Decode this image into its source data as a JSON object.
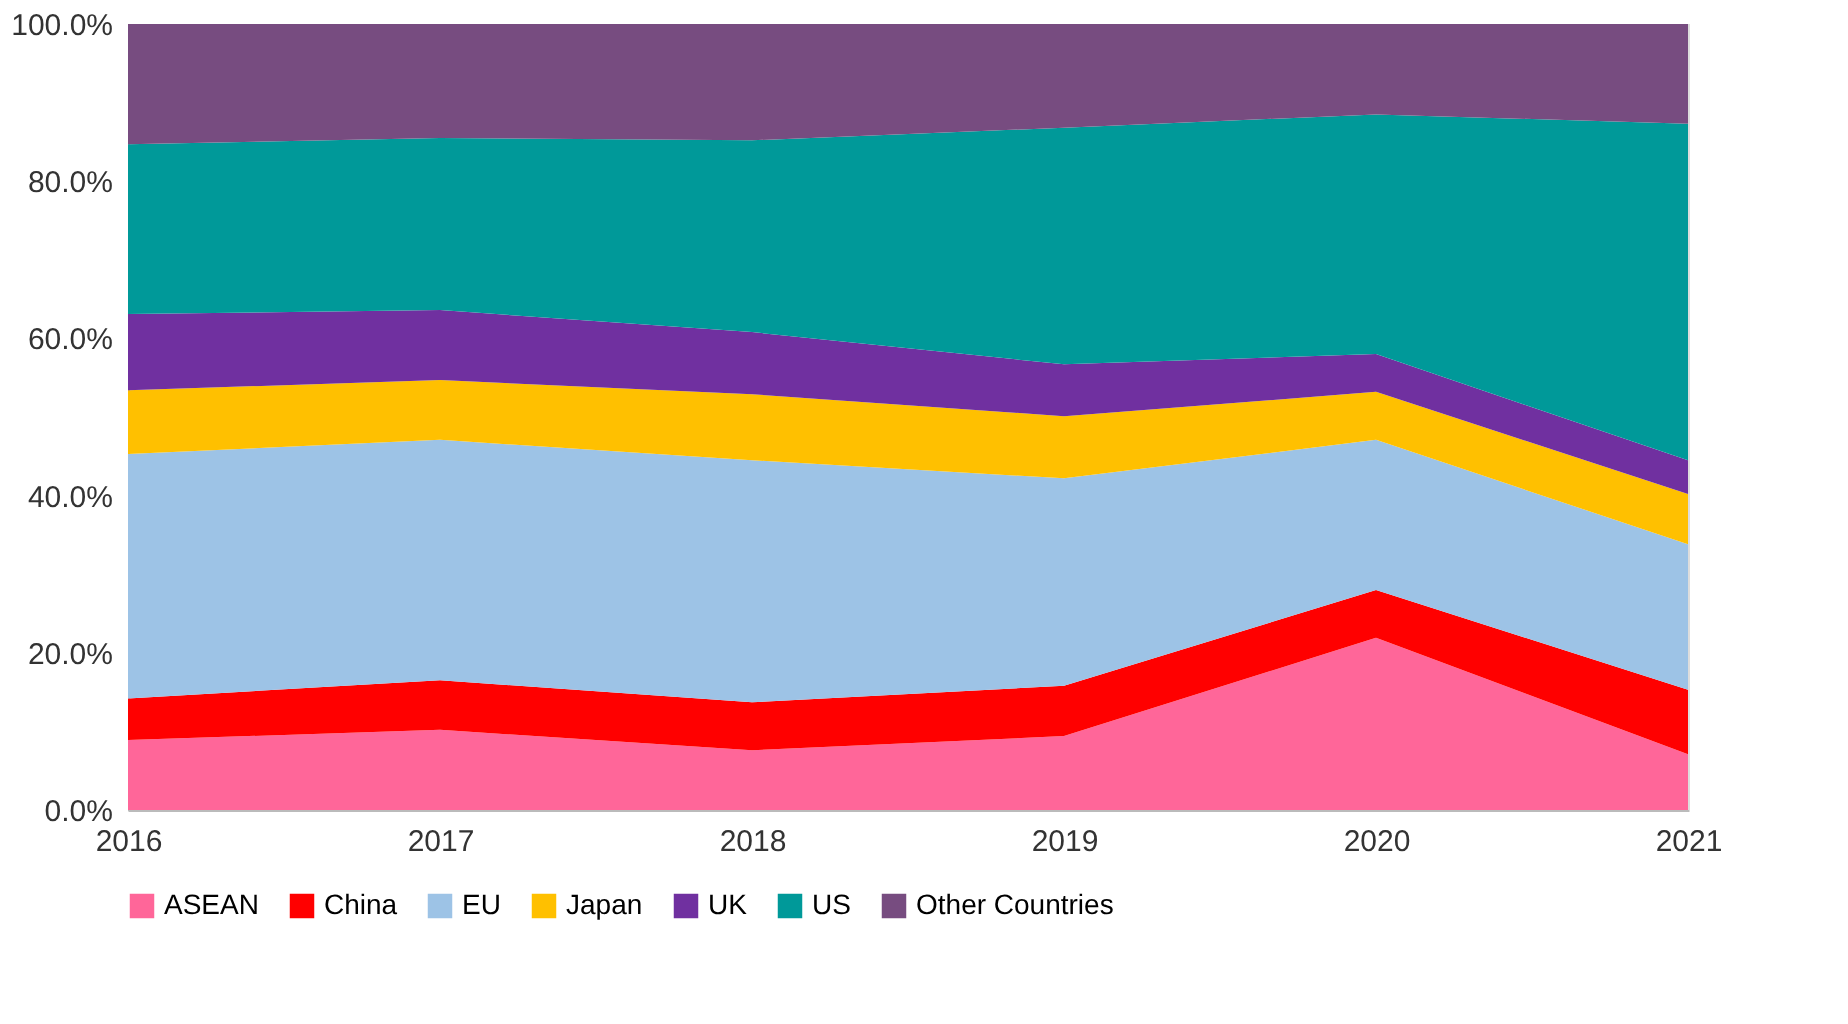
{
  "chart_data": {
    "type": "area",
    "stacked": true,
    "x": [
      2016,
      2017,
      2018,
      2019,
      2020,
      2021
    ],
    "xlim": [
      2016,
      2021
    ],
    "xticks": [
      2016,
      2017,
      2018,
      2019,
      2020,
      2021
    ],
    "ylim": [
      0,
      100
    ],
    "yticks": [
      {
        "value": 0,
        "label": "0.0%"
      },
      {
        "value": 20,
        "label": "20.0%"
      },
      {
        "value": 40,
        "label": "40.0%"
      },
      {
        "value": 60,
        "label": "60.0%"
      },
      {
        "value": 80,
        "label": "80.0%"
      },
      {
        "value": 100,
        "label": "100.0%"
      }
    ],
    "grid": false,
    "legend": "bottom",
    "series": [
      {
        "name": "ASEAN",
        "color": "#ff6699",
        "values": [
          8.9,
          10.2,
          7.6,
          9.4,
          21.9,
          7.1
        ]
      },
      {
        "name": "China",
        "color": "#ff0000",
        "values": [
          5.3,
          6.3,
          6.1,
          6.4,
          6.1,
          8.2
        ]
      },
      {
        "name": "EU",
        "color": "#9dc3e6",
        "values": [
          31.1,
          30.6,
          30.8,
          26.4,
          19.1,
          18.5
        ]
      },
      {
        "name": "Japan",
        "color": "#ffc000",
        "values": [
          8.1,
          7.6,
          8.4,
          7.9,
          6.1,
          6.4
        ]
      },
      {
        "name": "UK",
        "color": "#7030a0",
        "values": [
          9.7,
          8.9,
          7.9,
          6.6,
          4.8,
          4.3
        ]
      },
      {
        "name": "US",
        "color": "#009999",
        "values": [
          21.6,
          21.9,
          24.4,
          30.1,
          30.5,
          42.8
        ]
      },
      {
        "name": "Other Countries",
        "color": "#774c80",
        "values": [
          15.3,
          14.5,
          14.8,
          13.2,
          11.5,
          12.7
        ]
      }
    ]
  }
}
